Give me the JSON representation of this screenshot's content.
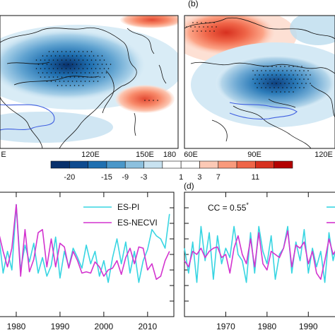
{
  "panel_labels": {
    "b": "(b)",
    "d": "(d)"
  },
  "colorbar": {
    "labels": [
      "-20",
      "-15",
      "-9",
      "-3",
      "1",
      "3",
      "7",
      "11"
    ],
    "colors": [
      "#08306b",
      "#0d4a8f",
      "#1f6fb0",
      "#4a97c9",
      "#8cc0de",
      "#c8e2f0",
      "#ffffff",
      "#ffffff",
      "#fcc9b5",
      "#f99a7c",
      "#ef6548",
      "#d7301f",
      "#b30000"
    ]
  },
  "map_left": {
    "x_ticks": [
      "E",
      "120E",
      "150E",
      "180"
    ]
  },
  "map_right": {
    "x_ticks": [
      "60E",
      "90E",
      "120E"
    ]
  },
  "chart_data": [
    {
      "type": "line",
      "panel": "c",
      "x": [
        1975,
        1976,
        1977,
        1978,
        1979,
        1980,
        1981,
        1982,
        1983,
        1984,
        1985,
        1986,
        1987,
        1988,
        1989,
        1990,
        1991,
        1992,
        1993,
        1994,
        1995,
        1996,
        1997,
        1998,
        1999,
        2000,
        2001,
        2002,
        2003,
        2004,
        2005,
        2006,
        2007,
        2008,
        2009,
        2010,
        2011,
        2012,
        2013,
        2014,
        2015
      ],
      "x_ticks": [
        1980,
        1990,
        2000,
        2010
      ],
      "xlim": [
        1975,
        2016
      ],
      "ylim": [
        -1,
        1
      ],
      "series": [
        {
          "name": "ES-PI",
          "color": "#38d5e2",
          "values": [
            0.05,
            0.32,
            -0.3,
            0.05,
            -0.25,
            0.8,
            -0.25,
            0.15,
            -0.12,
            0.18,
            -0.3,
            -0.05,
            -0.35,
            -0.18,
            0.28,
            -0.38,
            0.05,
            -0.2,
            0.1,
            -0.05,
            -0.22,
            0.15,
            -0.15,
            0.05,
            -0.35,
            -0.1,
            -0.45,
            -0.05,
            0.25,
            -0.15,
            0.2,
            -0.3,
            0.05,
            -0.45,
            -0.1,
            0.08,
            0.4,
            0.3,
            0.25,
            0.1,
            0.65
          ]
        },
        {
          "name": "ES-NECVI",
          "color": "#d333cf",
          "values": [
            -0.15,
            0.35,
            0.05,
            -0.2,
            0.1,
            0.8,
            -0.35,
            0.4,
            -0.28,
            -0.08,
            0.35,
            0.4,
            -0.2,
            0.25,
            -0.2,
            0.18,
            0.12,
            -0.22,
            0.05,
            -0.1,
            -0.3,
            -0.28,
            -0.3,
            -0.12,
            -0.2,
            -0.35,
            -0.25,
            -0.22,
            -0.1,
            -0.32,
            -0.05,
            0.1,
            -0.15,
            0.12,
            0.1,
            -0.25,
            -0.15,
            -0.4,
            -0.35,
            -0.1,
            0.05
          ]
        }
      ]
    },
    {
      "type": "line",
      "panel": "d",
      "annotation": "CC = 0.55",
      "annotation_sup": "*",
      "x": [
        1960,
        1961,
        1962,
        1963,
        1964,
        1965,
        1966,
        1967,
        1968,
        1969,
        1970,
        1971,
        1972,
        1973,
        1974,
        1975,
        1976,
        1977,
        1978,
        1979,
        1980,
        1981,
        1982,
        1983,
        1984,
        1985,
        1986,
        1987,
        1988,
        1989,
        1990,
        1991,
        1992,
        1993,
        1994,
        1995,
        1996,
        1997
      ],
      "x_ticks": [
        1970,
        1980,
        1990
      ],
      "xlim": [
        1960,
        1998
      ],
      "ylim": [
        -1,
        1
      ],
      "series": [
        {
          "color": "#38d5e2",
          "values": [
            0.1,
            -0.3,
            0.2,
            -0.45,
            0.45,
            -0.1,
            0.35,
            -0.4,
            0.3,
            -0.15,
            0.1,
            -0.05,
            0.45,
            0.0,
            -0.1,
            -0.45,
            0.35,
            -0.3,
            0.45,
            0.05,
            -0.15,
            0.3,
            -0.4,
            0.0,
            0.1,
            0.45,
            -0.3,
            0.2,
            -0.1,
            0.4,
            -0.3,
            0.1,
            -0.2,
            0.05,
            -0.45,
            0.35,
            -0.1,
            0.2
          ]
        },
        {
          "color": "#d333cf",
          "values": [
            -0.1,
            -0.2,
            0.05,
            0.0,
            0.1,
            -0.05,
            0.05,
            0.1,
            0.12,
            -0.05,
            0.0,
            -0.3,
            0.1,
            0.3,
            0.0,
            -0.15,
            0.25,
            -0.2,
            0.35,
            -0.15,
            -0.25,
            0.05,
            0.0,
            -0.05,
            0.1,
            0.38,
            -0.2,
            0.15,
            0.1,
            0.2,
            -0.15,
            0.05,
            -0.3,
            -0.4,
            -0.1,
            0.25,
            0.0,
            0.1
          ]
        }
      ]
    }
  ]
}
